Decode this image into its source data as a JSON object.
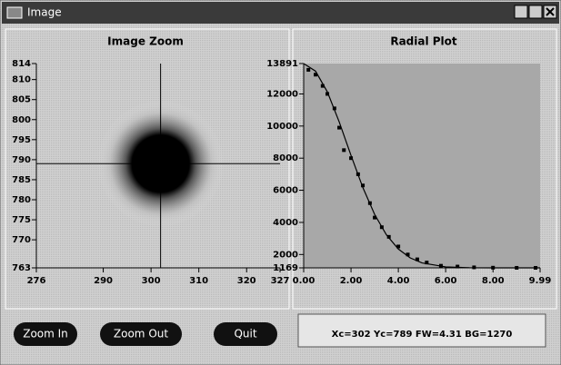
{
  "window": {
    "title": "Image"
  },
  "chart_data": [
    {
      "type": "image",
      "title": "Image Zoom",
      "xlim": [
        276,
        327
      ],
      "ylim": [
        763,
        814
      ],
      "xticks": [
        276,
        290,
        300,
        310,
        320,
        327
      ],
      "yticks": [
        814,
        810,
        805,
        800,
        795,
        790,
        785,
        780,
        775,
        770,
        763
      ],
      "crosshair": {
        "x": 302,
        "y": 789
      },
      "color": "#000000"
    },
    {
      "type": "scatter",
      "title": "Radial Plot",
      "background": "#a8a8a8",
      "xlim": [
        0,
        9.99
      ],
      "ylim": [
        1169,
        13891
      ],
      "xticks": [
        {
          "value": 0,
          "label": "0.00"
        },
        {
          "value": 2,
          "label": "2.00"
        },
        {
          "value": 4,
          "label": "4.00"
        },
        {
          "value": 6,
          "label": "6.00"
        },
        {
          "value": 8,
          "label": "8.00"
        },
        {
          "value": 9.99,
          "label": "9.99"
        }
      ],
      "yticks": [
        1169,
        2000,
        4000,
        6000,
        8000,
        10000,
        12000,
        13891
      ],
      "series": [
        {
          "type": "scatter",
          "color": "#000000",
          "x": [
            0.2,
            0.5,
            0.8,
            1.0,
            1.3,
            1.5,
            1.7,
            2.0,
            2.3,
            2.5,
            2.8,
            3.0,
            3.3,
            3.6,
            4.0,
            4.4,
            4.8,
            5.2,
            5.8,
            6.5,
            7.2,
            8.0,
            9.0,
            9.8
          ],
          "values": [
            13500,
            13200,
            12500,
            12000,
            11100,
            9900,
            8500,
            8000,
            7000,
            6300,
            5200,
            4300,
            3700,
            3100,
            2500,
            2000,
            1700,
            1500,
            1300,
            1250,
            1200,
            1180,
            1170,
            1169
          ]
        },
        {
          "type": "line",
          "color": "#000000",
          "x": [
            0,
            0.5,
            1.0,
            1.5,
            2.0,
            2.5,
            3.0,
            3.5,
            4.0,
            4.5,
            5.0,
            6.0,
            7.0,
            8.0,
            9.99
          ],
          "values": [
            13891,
            13420,
            12130,
            10260,
            8170,
            6170,
            4490,
            3215,
            2340,
            1789,
            1474,
            1228,
            1175,
            1169,
            1169
          ]
        }
      ]
    }
  ],
  "buttons": [
    "Zoom In",
    "Zoom Out",
    "Quit"
  ],
  "status": "Xc=302  Yc=789  FW=4.31  BG=1270"
}
